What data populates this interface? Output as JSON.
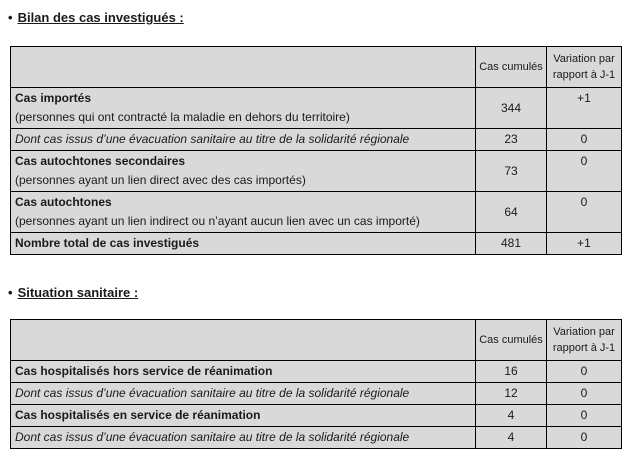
{
  "colors": {
    "table_shading": "#d9d9d9",
    "border": "#000000",
    "text": "#1a1a1a"
  },
  "sections": [
    {
      "bullet": "•",
      "title": "Bilan des cas investigués :",
      "table": {
        "headers": {
          "cases": "Cas cumulés",
          "variation": "Variation par rapport à J-1"
        },
        "rows": [
          {
            "label": "Cas importés",
            "sub": "(personnes qui ont contracté la maladie en dehors du territoire)",
            "cases": "344",
            "variation": "+1"
          },
          {
            "label": "Dont cas issus d’une évacuation sanitaire au titre de la solidarité régionale",
            "cases": "23",
            "variation": "0"
          },
          {
            "label": "Cas autochtones secondaires",
            "sub": "(personnes ayant un lien direct avec des cas importés)",
            "cases": "73",
            "variation": "0"
          },
          {
            "label": "Cas autochtones",
            "sub": "(personnes ayant un lien indirect ou n’ayant aucun lien avec un cas importé)",
            "cases": "64",
            "variation": "0"
          },
          {
            "label": "Nombre total de cas investigués",
            "cases": "481",
            "variation": "+1"
          }
        ]
      }
    },
    {
      "bullet": "•",
      "title": "Situation sanitaire :",
      "table": {
        "headers": {
          "cases": "Cas cumulés",
          "variation": "Variation par rapport à J-1"
        },
        "rows": [
          {
            "label": "Cas hospitalisés hors service de réanimation",
            "cases": "16",
            "variation": "0"
          },
          {
            "label": "Dont cas issus d’une évacuation sanitaire au titre de la solidarité régionale",
            "cases": "12",
            "variation": "0"
          },
          {
            "label": "Cas hospitalisés en service de réanimation",
            "cases": "4",
            "variation": "0"
          },
          {
            "label": "Dont cas issus d’une évacuation sanitaire au titre de la solidarité régionale",
            "cases": "4",
            "variation": "0"
          }
        ]
      }
    }
  ]
}
